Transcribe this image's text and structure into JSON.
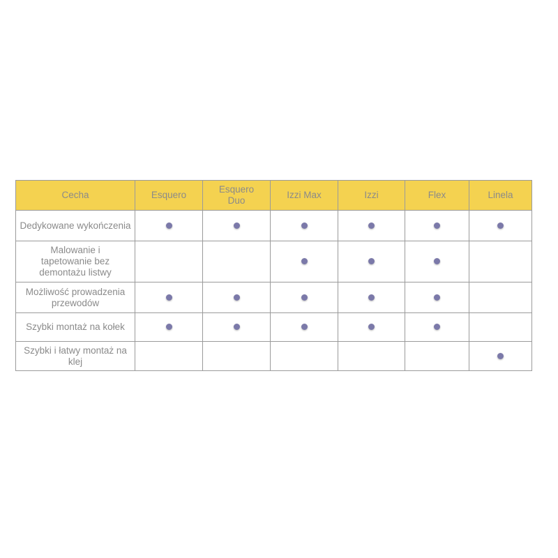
{
  "table": {
    "headers": [
      "Cecha",
      "Esquero",
      "Esquero Duo",
      "Izzi Max",
      "Izzi",
      "Flex",
      "Linela"
    ],
    "rows": [
      {
        "feature": "Dedykowane wykończenia",
        "marks": [
          true,
          true,
          true,
          true,
          true,
          true
        ]
      },
      {
        "feature": "Malowanie i tapetowanie bez demontażu listwy",
        "marks": [
          false,
          false,
          true,
          true,
          true,
          false
        ]
      },
      {
        "feature": "Możliwość prowadzenia przewodów",
        "marks": [
          true,
          true,
          true,
          true,
          true,
          false
        ]
      },
      {
        "feature": "Szybki montaż na kołek",
        "marks": [
          true,
          true,
          true,
          true,
          true,
          false
        ]
      },
      {
        "feature": "Szybki i łatwy montaż na klej",
        "marks": [
          false,
          false,
          false,
          false,
          false,
          true
        ]
      }
    ]
  },
  "colors": {
    "header_bg": "#f4d250",
    "dot": "#7b79a9",
    "text": "#8a8a8a",
    "border": "#9a9a9a"
  }
}
